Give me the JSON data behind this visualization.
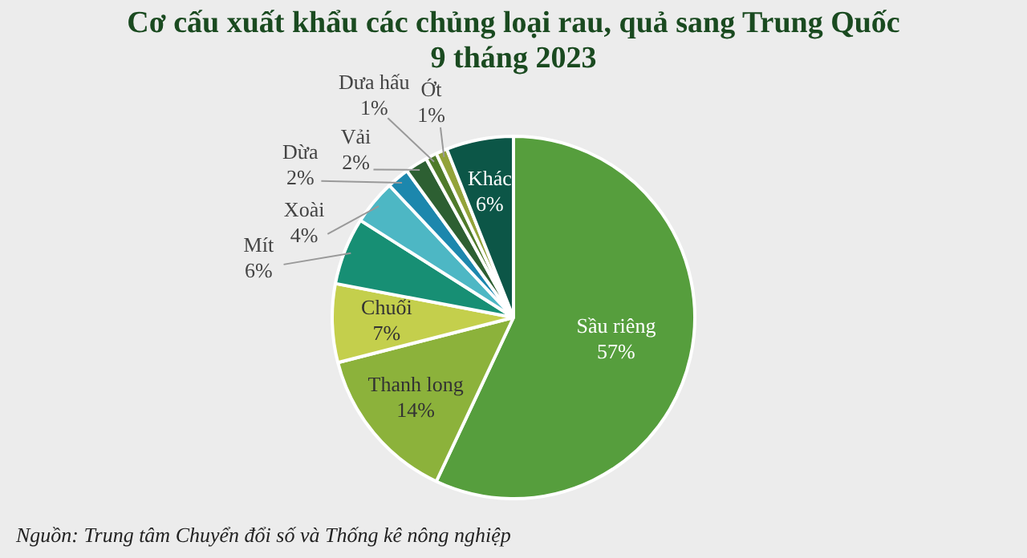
{
  "chart_data": {
    "type": "pie",
    "title": "Cơ cấu xuất khẩu các chủng loại rau, quả sang Trung Quốc\n9 tháng 2023",
    "categories": [
      "Sầu riêng",
      "Thanh long",
      "Chuối",
      "Mít",
      "Xoài",
      "Dừa",
      "Vải",
      "Dưa hấu",
      "Ớt",
      "Khác"
    ],
    "values": [
      57,
      14,
      7,
      6,
      4,
      2,
      2,
      1,
      1,
      6
    ],
    "colors": [
      "#569e3d",
      "#8cb23b",
      "#c4cf4c",
      "#178f74",
      "#4db7c4",
      "#1c87ad",
      "#2d5f32",
      "#4f7a2a",
      "#93a33a",
      "#0c5647"
    ],
    "value_labels": [
      "57%",
      "14%",
      "7%",
      "6%",
      "4%",
      "2%",
      "2%",
      "1%",
      "1%",
      "6%"
    ],
    "annotations": [
      "Nguồn: Trung tâm Chuyển đổi số và Thống kê nông nghiệp"
    ]
  }
}
